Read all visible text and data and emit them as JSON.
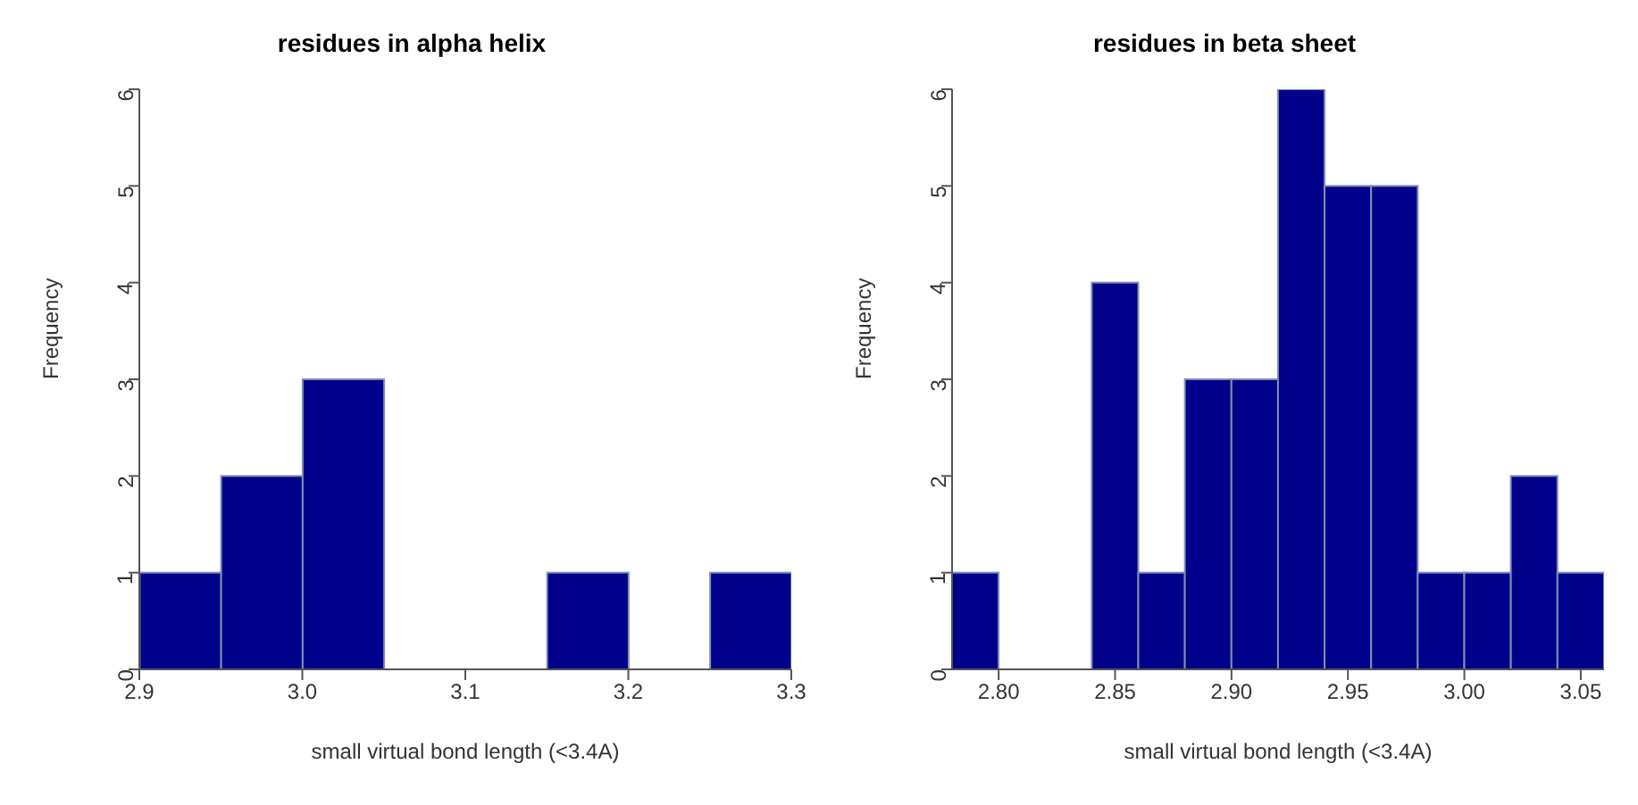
{
  "chart_data": [
    {
      "type": "histogram",
      "title": "residues in alpha helix",
      "xlabel": "small virtual bond length (<3.4A)",
      "ylabel": "Frequency",
      "bins": [
        2.9,
        2.95,
        3.0,
        3.05,
        3.1,
        3.15,
        3.2,
        3.25,
        3.3
      ],
      "values": [
        1,
        2,
        3,
        0,
        0,
        1,
        0,
        1
      ],
      "color": "#00008b",
      "xlim": [
        2.9,
        3.3
      ],
      "xticks": [
        {
          "value": 2.9,
          "label": "2.9"
        },
        {
          "value": 3.0,
          "label": "3.0"
        },
        {
          "value": 3.1,
          "label": "3.1"
        },
        {
          "value": 3.2,
          "label": "3.2"
        },
        {
          "value": 3.3,
          "label": "3.3"
        }
      ],
      "ylim": [
        0,
        6
      ],
      "yticks": [
        0,
        1,
        2,
        3,
        4,
        5,
        6
      ],
      "grid": false
    },
    {
      "type": "histogram",
      "title": "residues in beta sheet",
      "xlabel": "small virtual bond length (<3.4A)",
      "ylabel": "Frequency",
      "bins": [
        2.78,
        2.8,
        2.82,
        2.84,
        2.86,
        2.88,
        2.9,
        2.92,
        2.94,
        2.96,
        2.98,
        3.0,
        3.02,
        3.04,
        3.06
      ],
      "values": [
        1,
        0,
        0,
        4,
        1,
        3,
        3,
        6,
        5,
        5,
        1,
        1,
        2,
        1
      ],
      "color": "#00008b",
      "xlim": [
        2.78,
        3.06
      ],
      "xticks": [
        {
          "value": 2.8,
          "label": "2.80"
        },
        {
          "value": 2.85,
          "label": "2.85"
        },
        {
          "value": 2.9,
          "label": "2.90"
        },
        {
          "value": 2.95,
          "label": "2.95"
        },
        {
          "value": 3.0,
          "label": "3.00"
        },
        {
          "value": 3.05,
          "label": "3.05"
        }
      ],
      "ylim": [
        0,
        6
      ],
      "yticks": [
        0,
        1,
        2,
        3,
        4,
        5,
        6
      ],
      "grid": false
    }
  ]
}
